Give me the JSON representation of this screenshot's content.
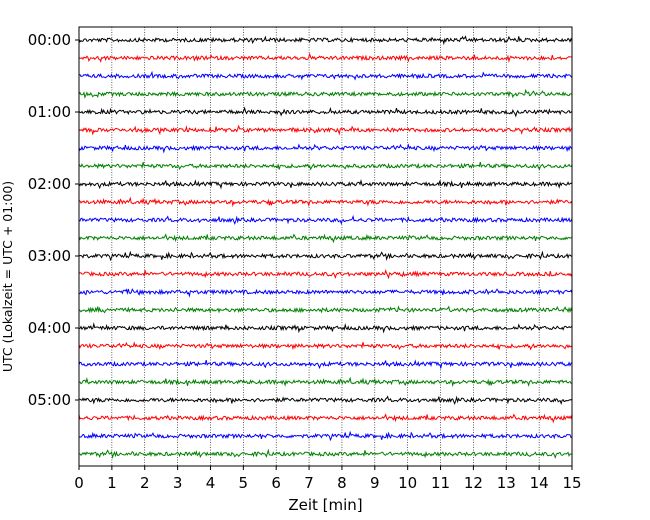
{
  "chart_data": {
    "type": "line",
    "title": "",
    "xlabel": "Zeit  [min]",
    "ylabel": "UTC (Lokalzeit = UTC + 01:00)",
    "xlim": [
      0,
      15
    ],
    "x_ticks": [
      "0",
      "1",
      "2",
      "3",
      "4",
      "5",
      "6",
      "7",
      "8",
      "9",
      "10",
      "11",
      "12",
      "13",
      "14",
      "15"
    ],
    "y_ticks": [
      "00:00",
      "01:00",
      "02:00",
      "03:00",
      "04:00",
      "05:00"
    ],
    "y_unit": "trace offset (15-min lines starting at the listed UTC hour)",
    "grid": "vertical dotted lines at each minute",
    "trace_colors": [
      "#000000",
      "#ff0000",
      "#0000ff",
      "#008000"
    ],
    "series": [
      {
        "start": "00:00",
        "color": "#000000",
        "amplitude": 1.0
      },
      {
        "start": "00:15",
        "color": "#ff0000",
        "amplitude": 1.0
      },
      {
        "start": "00:30",
        "color": "#0000ff",
        "amplitude": 1.0
      },
      {
        "start": "00:45",
        "color": "#008000",
        "amplitude": 1.0
      },
      {
        "start": "01:00",
        "color": "#000000",
        "amplitude": 1.0
      },
      {
        "start": "01:15",
        "color": "#ff0000",
        "amplitude": 1.0
      },
      {
        "start": "01:30",
        "color": "#0000ff",
        "amplitude": 1.0
      },
      {
        "start": "01:45",
        "color": "#008000",
        "amplitude": 1.0
      },
      {
        "start": "02:00",
        "color": "#000000",
        "amplitude": 1.0
      },
      {
        "start": "02:15",
        "color": "#ff0000",
        "amplitude": 1.0
      },
      {
        "start": "02:30",
        "color": "#0000ff",
        "amplitude": 1.0
      },
      {
        "start": "02:45",
        "color": "#008000",
        "amplitude": 1.0
      },
      {
        "start": "03:00",
        "color": "#000000",
        "amplitude": 1.0
      },
      {
        "start": "03:15",
        "color": "#ff0000",
        "amplitude": 1.0
      },
      {
        "start": "03:30",
        "color": "#0000ff",
        "amplitude": 1.0
      },
      {
        "start": "03:45",
        "color": "#008000",
        "amplitude": 1.0
      },
      {
        "start": "04:00",
        "color": "#000000",
        "amplitude": 1.0
      },
      {
        "start": "04:15",
        "color": "#ff0000",
        "amplitude": 1.0
      },
      {
        "start": "04:30",
        "color": "#0000ff",
        "amplitude": 1.0
      },
      {
        "start": "04:45",
        "color": "#008000",
        "amplitude": 1.0
      },
      {
        "start": "05:00",
        "color": "#000000",
        "amplitude": 1.0
      },
      {
        "start": "05:15",
        "color": "#ff0000",
        "amplitude": 1.0
      },
      {
        "start": "05:30",
        "color": "#0000ff",
        "amplitude": 1.0
      },
      {
        "start": "05:45",
        "color": "#008000",
        "amplitude": 1.0
      }
    ]
  }
}
